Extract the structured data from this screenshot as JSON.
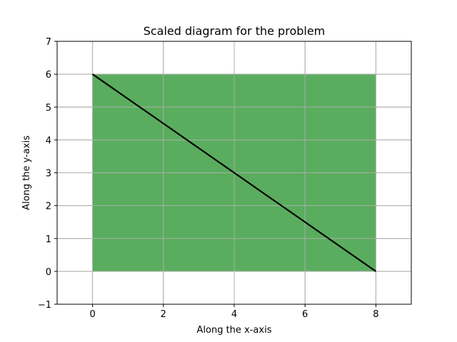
{
  "chart_data": {
    "type": "area",
    "title": "Scaled diagram for the problem",
    "xlabel": "Along the x-axis",
    "ylabel": "Along the y-axis",
    "xlim": [
      -1,
      9
    ],
    "ylim": [
      -1,
      7
    ],
    "xticks": [
      0,
      2,
      4,
      6,
      8
    ],
    "yticks": [
      -1,
      0,
      1,
      2,
      3,
      4,
      5,
      6,
      7
    ],
    "xtick_labels": [
      "0",
      "2",
      "4",
      "6",
      "8"
    ],
    "ytick_labels": [
      "−1",
      "0",
      "1",
      "2",
      "3",
      "4",
      "5",
      "6",
      "7"
    ],
    "grid": true,
    "shapes": [
      {
        "kind": "rectangle",
        "x": [
          0,
          8
        ],
        "y": [
          0,
          6
        ],
        "fill_color": "#5aad5e",
        "edge_color": "#8fbf8f"
      },
      {
        "kind": "line",
        "x": [
          0,
          8
        ],
        "y": [
          6,
          0
        ],
        "color": "#000000"
      }
    ]
  }
}
